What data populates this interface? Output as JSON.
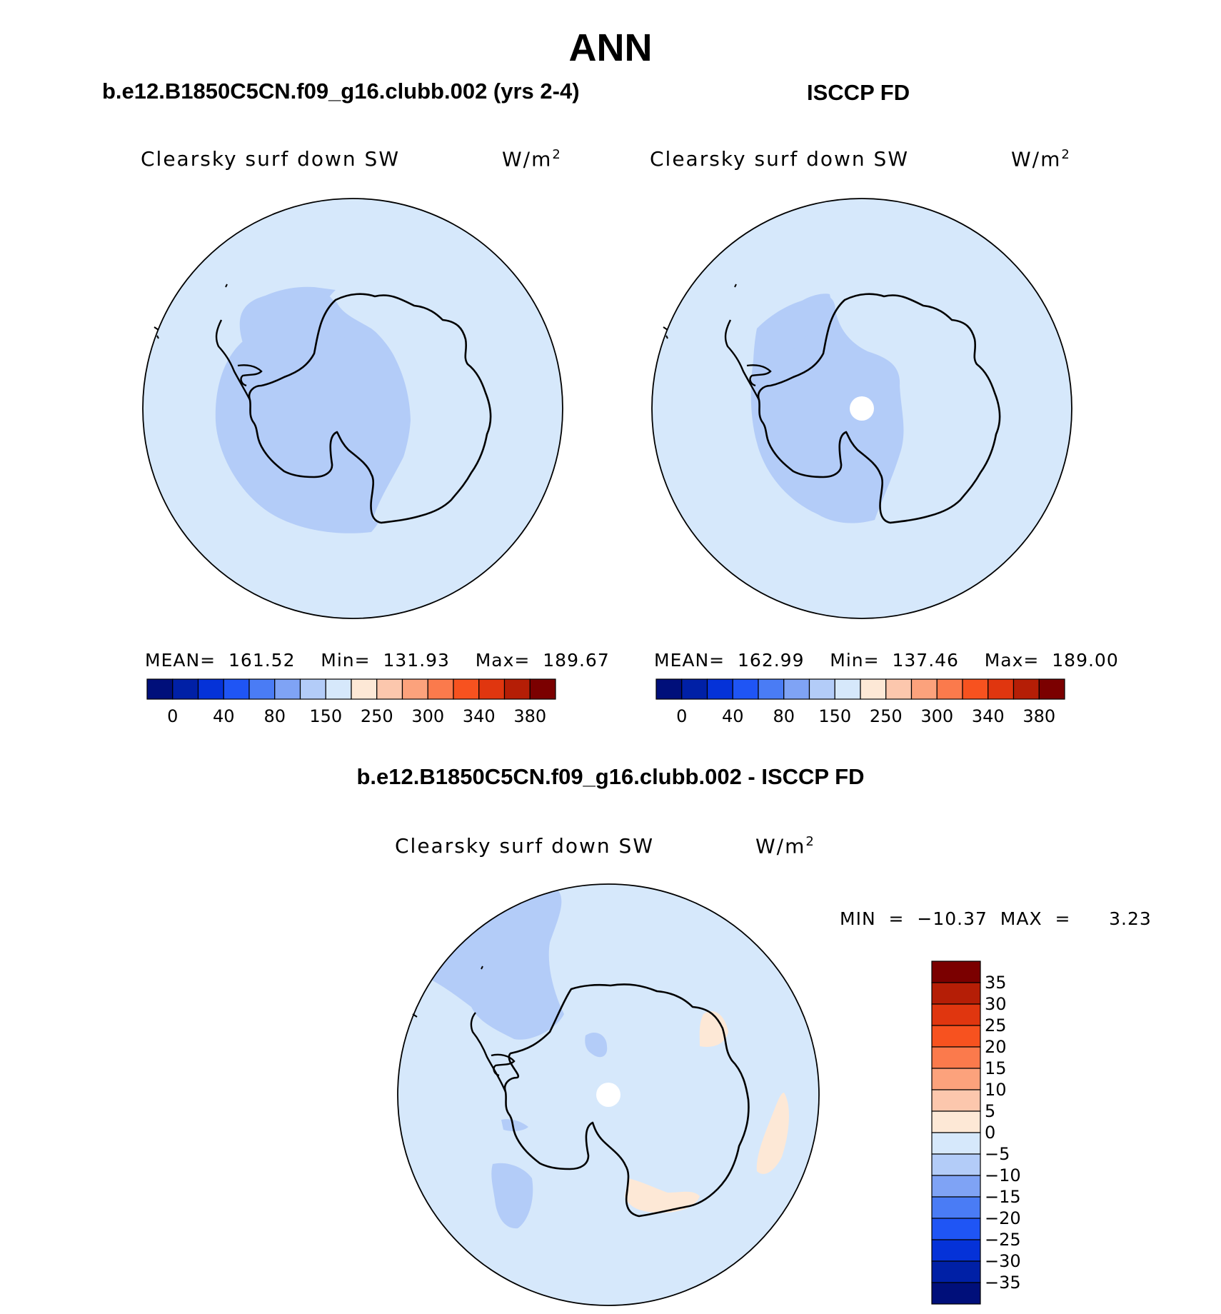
{
  "page": {
    "title": "ANN"
  },
  "panels": [
    {
      "heading": "b.e12.B1850C5CN.f09_g16.clubb.002 (yrs 2-4)",
      "variable": "Clearsky surf down SW",
      "units_base": "W/m",
      "units_exp": "2",
      "stats": "MEAN=  161.52    Min=  131.93    Max=  189.67"
    },
    {
      "heading": "ISCCP FD",
      "variable": "Clearsky surf down SW",
      "units_base": "W/m",
      "units_exp": "2",
      "stats": "MEAN=  162.99    Min=  137.46    Max=  189.00"
    }
  ],
  "diff": {
    "heading": "b.e12.B1850C5CN.f09_g16.clubb.002 - ISCCP FD",
    "variable": "Clearsky surf down SW",
    "units_base": "W/m",
    "units_exp": "2",
    "stats": "MIN  =  −10.37  MAX  =      3.23"
  },
  "colorbar_top": {
    "colors": [
      "#000f7a",
      "#0020a6",
      "#0532d8",
      "#1f55f5",
      "#4a7cf5",
      "#7fa3f5",
      "#b3ccf8",
      "#d6e8fb",
      "#fde8d6",
      "#fcc7ad",
      "#fca27c",
      "#fb7a4c",
      "#f7521f",
      "#e0360f",
      "#b51e06",
      "#7b0000"
    ],
    "labels": [
      "0",
      "40",
      "80",
      "150",
      "250",
      "300",
      "340",
      "380"
    ]
  },
  "colorbar_diff": {
    "colors": [
      "#7b0000",
      "#b51e06",
      "#e0360f",
      "#f7521f",
      "#fb7a4c",
      "#fca27c",
      "#fcc7ad",
      "#fde8d6",
      "#d6e8fb",
      "#b3ccf8",
      "#7fa3f5",
      "#4a7cf5",
      "#1f55f5",
      "#0532d8",
      "#0020a6",
      "#000f7a"
    ],
    "labels": [
      "35",
      "30",
      "25",
      "20",
      "15",
      "10",
      "5",
      "0",
      "−5",
      "−10",
      "−15",
      "−20",
      "−25",
      "−30",
      "−35"
    ]
  },
  "colors": {
    "field_light": "#d6e8fb",
    "field_mid": "#b3ccf8",
    "field_pos": "#fde8d6",
    "missing": "#ffffff"
  }
}
